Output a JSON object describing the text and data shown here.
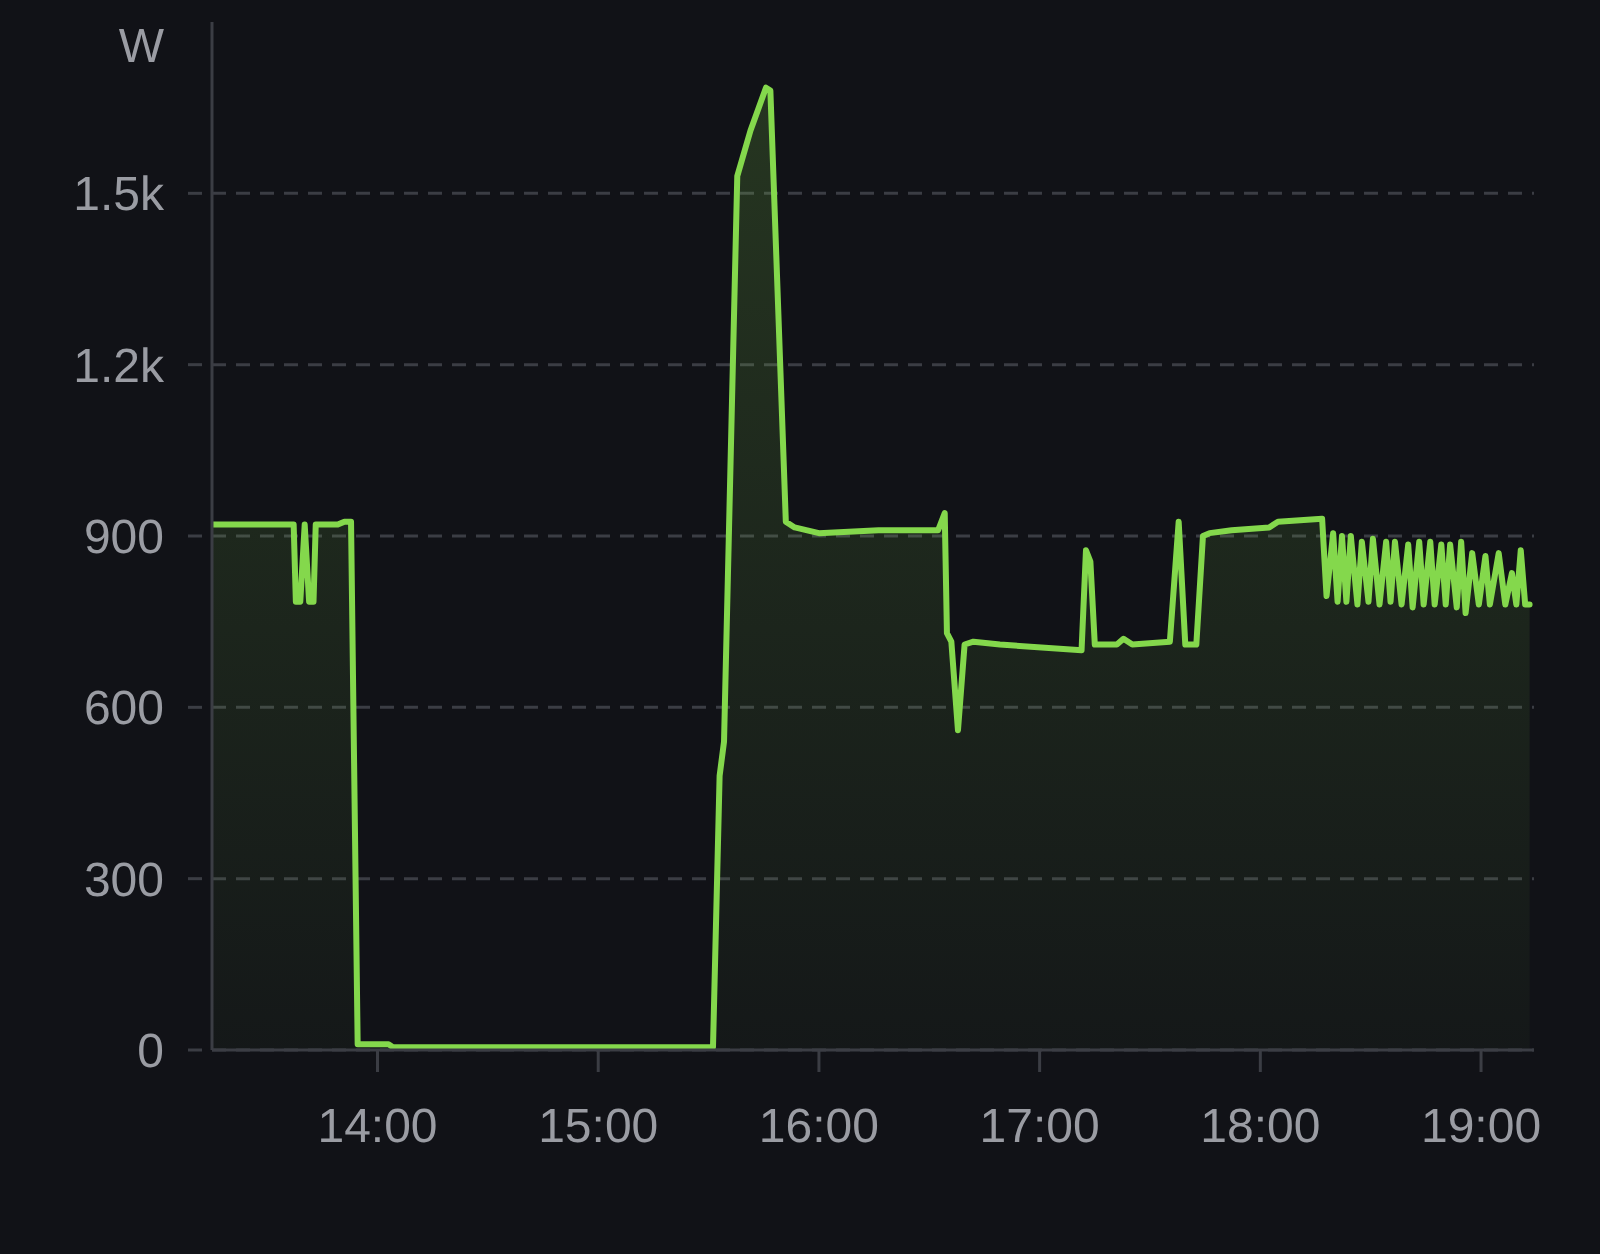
{
  "chart_data": {
    "type": "area",
    "ylabel": "W",
    "color": "#84d84c",
    "grid": "y",
    "x": [
      13.25,
      13.62,
      13.63,
      13.65,
      13.67,
      13.69,
      13.71,
      13.72,
      13.82,
      13.85,
      13.88,
      13.91,
      14.05,
      14.07,
      15.52,
      15.55,
      15.57,
      15.63,
      15.69,
      15.76,
      15.78,
      15.85,
      15.89,
      16.0,
      16.27,
      16.54,
      16.57,
      16.58,
      16.6,
      16.63,
      16.66,
      16.7,
      16.82,
      17.19,
      17.21,
      17.23,
      17.25,
      17.35,
      17.38,
      17.42,
      17.59,
      17.63,
      17.66,
      17.71,
      17.74,
      17.77,
      17.87,
      18.04,
      18.08,
      18.28,
      18.3,
      18.33,
      18.35,
      18.37,
      18.39,
      18.41,
      18.44,
      18.46,
      18.49,
      18.51,
      18.54,
      18.57,
      18.59,
      18.61,
      18.64,
      18.67,
      18.69,
      18.72,
      18.74,
      18.77,
      18.79,
      18.82,
      18.84,
      18.86,
      18.89,
      18.91,
      18.93,
      18.96,
      18.99,
      19.02,
      19.04,
      19.08,
      19.11,
      19.14,
      19.16,
      19.18,
      19.2,
      19.22
    ],
    "values": [
      920,
      920,
      785,
      785,
      920,
      785,
      785,
      920,
      920,
      925,
      925,
      10,
      10,
      5,
      5,
      480,
      540,
      1530,
      1610,
      1685,
      1680,
      925,
      915,
      905,
      910,
      910,
      940,
      730,
      715,
      560,
      710,
      715,
      710,
      700,
      875,
      855,
      710,
      710,
      720,
      710,
      715,
      925,
      710,
      710,
      900,
      905,
      910,
      915,
      925,
      930,
      795,
      905,
      785,
      900,
      785,
      900,
      780,
      890,
      785,
      895,
      780,
      890,
      785,
      890,
      780,
      885,
      775,
      890,
      780,
      890,
      780,
      885,
      780,
      885,
      775,
      890,
      765,
      870,
      780,
      865,
      780,
      870,
      780,
      835,
      780,
      875,
      780,
      780
    ],
    "xlim": [
      13.25,
      19.24
    ],
    "xticks": [
      {
        "value": 14,
        "label": "14:00"
      },
      {
        "value": 15,
        "label": "15:00"
      },
      {
        "value": 16,
        "label": "16:00"
      },
      {
        "value": 17,
        "label": "17:00"
      },
      {
        "value": 18,
        "label": "18:00"
      },
      {
        "value": 19,
        "label": "19:00"
      }
    ],
    "ylim": [
      0,
      1800
    ],
    "yticks": [
      0,
      300,
      600,
      900,
      {
        "value": 1200,
        "label": "1.2k"
      },
      {
        "value": 1500,
        "label": "1.5k"
      }
    ]
  }
}
